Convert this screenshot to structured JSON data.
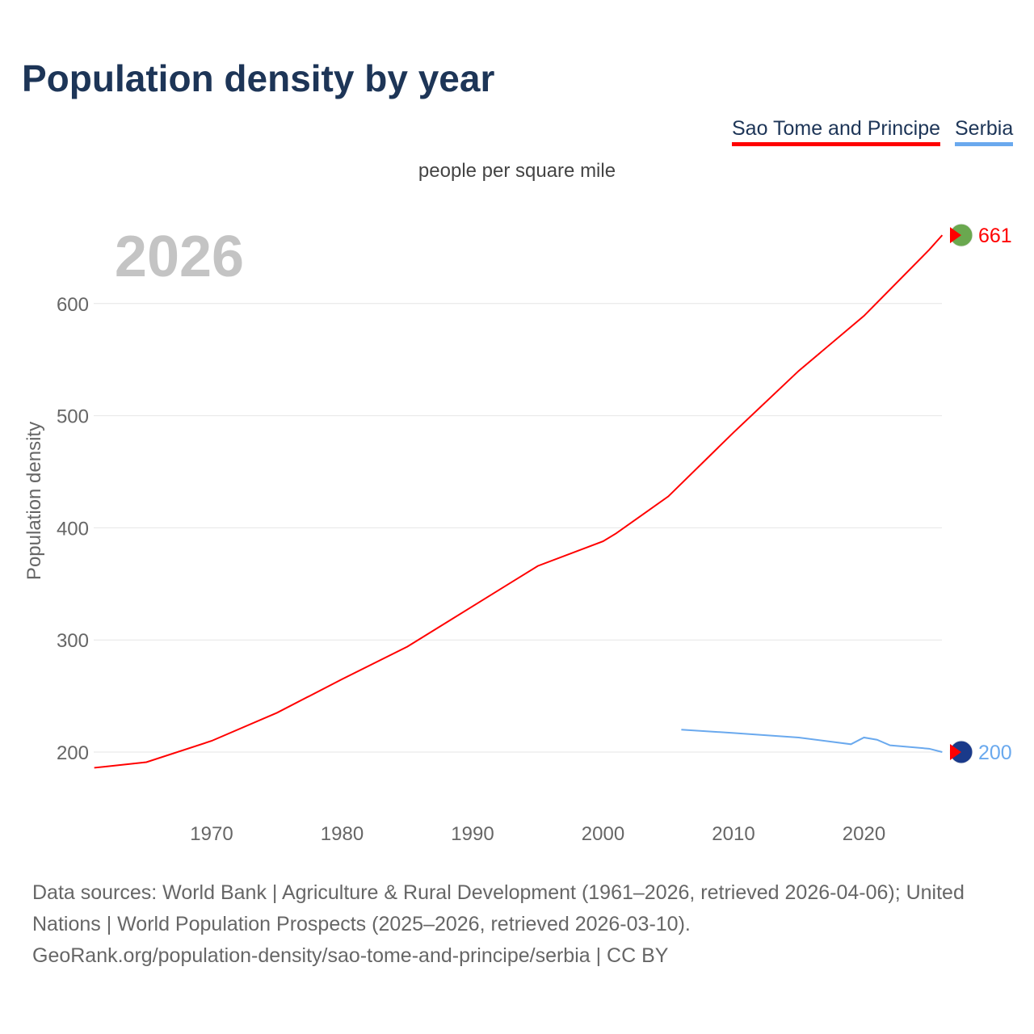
{
  "title": "Population density by year",
  "legend": [
    {
      "name": "Sao Tome and Principe",
      "color": "#ff0000"
    },
    {
      "name": "Serbia",
      "color": "#6aa9ee"
    }
  ],
  "unit": "people per square mile",
  "year_label": "2026",
  "sources": "Data sources: World Bank | Agriculture & Rural Development (1961–2026, retrieved 2026-04-06); United Nations | World Population Prospects (2025–2026, retrieved 2026-03-10).",
  "link": "GeoRank.org/population-density/sao-tome-and-principe/serbia | CC BY",
  "chart_data": {
    "type": "line",
    "title": "Population density by year",
    "xlabel": "",
    "ylabel": "Population density",
    "xlim": [
      1961,
      2026
    ],
    "ylim": [
      150,
      680
    ],
    "xticks": [
      1970,
      1980,
      1990,
      2000,
      2010,
      2020
    ],
    "yticks": [
      200,
      300,
      400,
      500,
      600
    ],
    "grid": true,
    "series": [
      {
        "name": "Sao Tome and Principe",
        "color": "#ff0000",
        "end_label": "661",
        "x": [
          1961,
          1965,
          1970,
          1975,
          1980,
          1985,
          1990,
          1995,
          2000,
          2001,
          2005,
          2010,
          2015,
          2020,
          2025,
          2026
        ],
        "y": [
          186,
          191,
          210,
          235,
          265,
          294,
          330,
          366,
          388,
          395,
          428,
          485,
          540,
          589,
          648,
          661
        ]
      },
      {
        "name": "Serbia",
        "color": "#6aa9ee",
        "end_label": "200",
        "x": [
          2006,
          2010,
          2015,
          2019,
          2020,
          2021,
          2022,
          2025,
          2026
        ],
        "y": [
          220,
          217,
          213,
          207,
          213,
          211,
          206,
          203,
          200
        ]
      }
    ]
  }
}
